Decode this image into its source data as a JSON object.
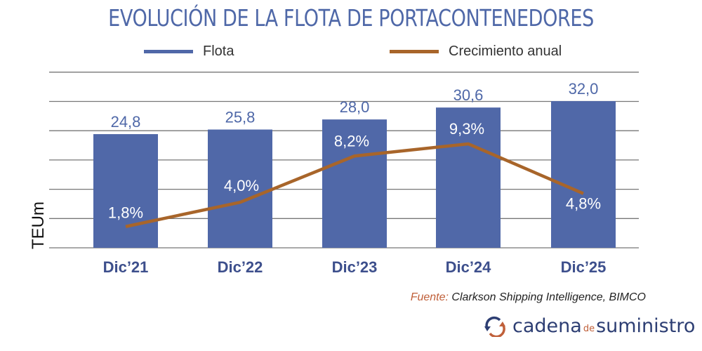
{
  "chart_data": {
    "type": "bar+line",
    "title": "EVOLUCIÓN DE LA FLOTA DE PORTACONTENEDORES",
    "categories": [
      "Dic’21",
      "Dic’22",
      "Dic’23",
      "Dic’24",
      "Dic’25"
    ],
    "ylabel": "TEUm",
    "grid": true,
    "legend_position": "top",
    "series": [
      {
        "name": "Flota",
        "type": "bar",
        "color": "#5068a8",
        "values": [
          24.8,
          25.8,
          28.0,
          30.6,
          32.0
        ],
        "labels": [
          "24,8",
          "25,8",
          "28,0",
          "30,6",
          "32,0"
        ]
      },
      {
        "name": "Crecimiento anual",
        "type": "line",
        "color": "#a8652a",
        "values": [
          1.8,
          4.0,
          8.2,
          9.3,
          4.8
        ],
        "labels": [
          "1,8%",
          "4,0%",
          "8,2%",
          "9,3%",
          "4,8%"
        ]
      }
    ]
  },
  "source": {
    "label": "Fuente:",
    "text": "Clarkson Shipping Intelligence, BIMCO"
  },
  "logo": {
    "part1": "cadena",
    "part2": "de",
    "part3": "suministro"
  }
}
